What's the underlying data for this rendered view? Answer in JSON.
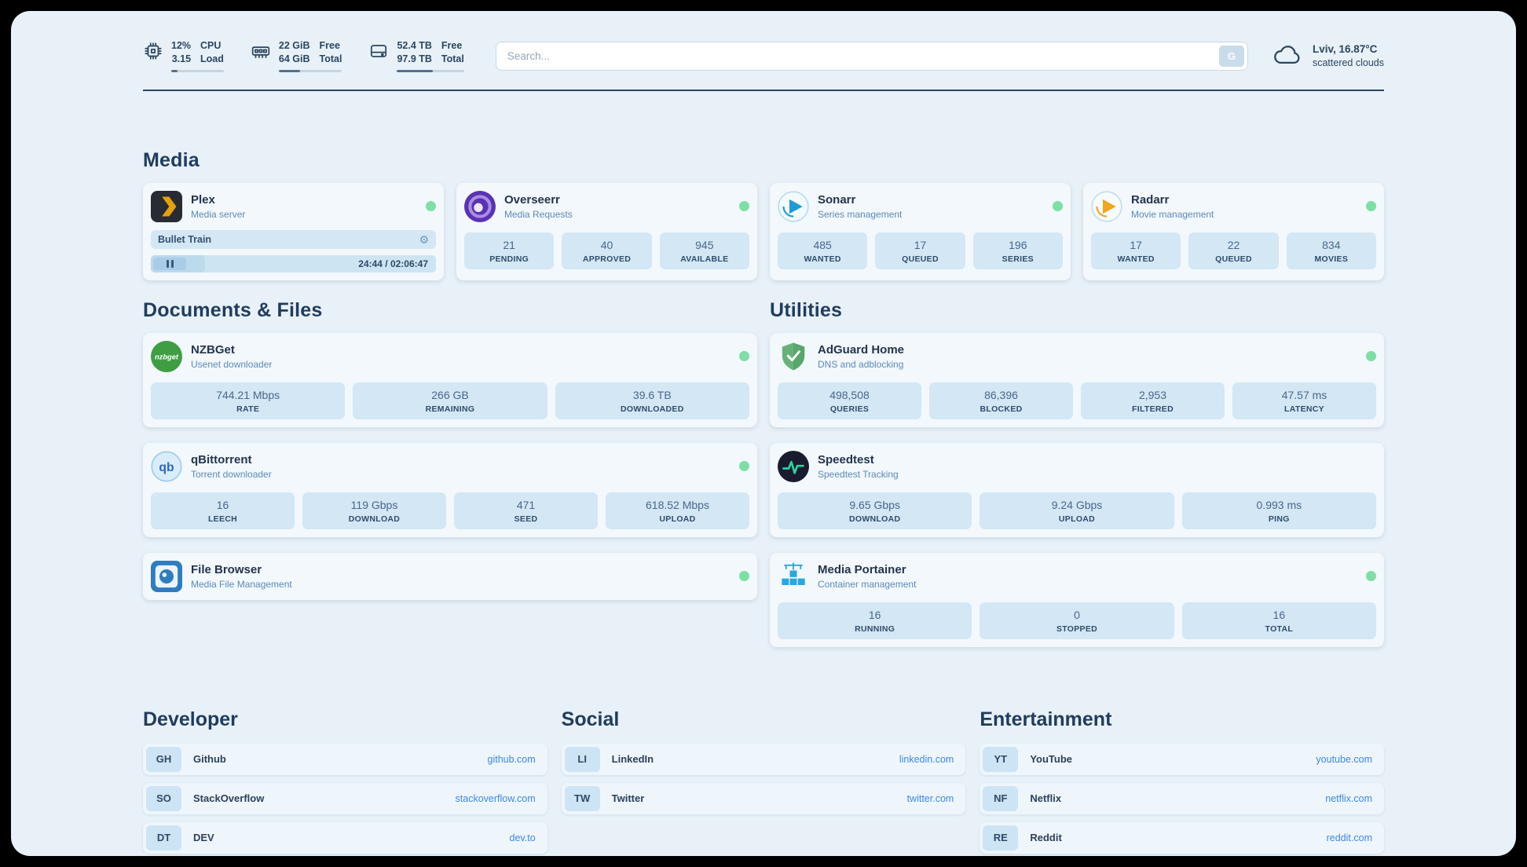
{
  "colors": {
    "status_online": "#7ddfa5",
    "link": "#3f86e8",
    "tile": "#d3e7f5",
    "background": "#e8f1f8"
  },
  "glyphs": {
    "gear": "⚙"
  },
  "topbar": {
    "cpu": {
      "value": "12%",
      "load": "3.15",
      "label_top": "CPU",
      "label_bottom": "Load",
      "meter_percent": 12
    },
    "memory": {
      "free": "22 GiB",
      "total": "64 GiB",
      "label_top": "Free",
      "label_bottom": "Total",
      "meter_percent": 34
    },
    "disk": {
      "free": "52.4 TB",
      "total": "97.9 TB",
      "label_top": "Free",
      "label_bottom": "Total",
      "meter_percent": 53
    },
    "search": {
      "placeholder": "Search...",
      "button_label": "G"
    },
    "weather": {
      "location": "Lviv, 16.87°C",
      "condition": "scattered clouds"
    }
  },
  "media": {
    "title": "Media",
    "plex": {
      "title": "Plex",
      "subtitle": "Media server",
      "now_playing": "Bullet Train",
      "time": "24:44 / 02:06:47",
      "progress_percent": 19
    },
    "overseerr": {
      "title": "Overseerr",
      "subtitle": "Media Requests",
      "stats": [
        {
          "value": "21",
          "label": "PENDING"
        },
        {
          "value": "40",
          "label": "APPROVED"
        },
        {
          "value": "945",
          "label": "AVAILABLE"
        }
      ]
    },
    "sonarr": {
      "title": "Sonarr",
      "subtitle": "Series management",
      "stats": [
        {
          "value": "485",
          "label": "WANTED"
        },
        {
          "value": "17",
          "label": "QUEUED"
        },
        {
          "value": "196",
          "label": "SERIES"
        }
      ]
    },
    "radarr": {
      "title": "Radarr",
      "subtitle": "Movie management",
      "stats": [
        {
          "value": "17",
          "label": "WANTED"
        },
        {
          "value": "22",
          "label": "QUEUED"
        },
        {
          "value": "834",
          "label": "MOVIES"
        }
      ]
    }
  },
  "documents": {
    "title": "Documents & Files",
    "nzbget": {
      "title": "NZBGet",
      "subtitle": "Usenet downloader",
      "stats": [
        {
          "value": "744.21 Mbps",
          "label": "RATE"
        },
        {
          "value": "266 GB",
          "label": "REMAINING"
        },
        {
          "value": "39.6 TB",
          "label": "DOWNLOADED"
        }
      ]
    },
    "qbittorrent": {
      "title": "qBittorrent",
      "subtitle": "Torrent downloader",
      "stats": [
        {
          "value": "16",
          "label": "LEECH"
        },
        {
          "value": "119 Gbps",
          "label": "DOWNLOAD"
        },
        {
          "value": "471",
          "label": "SEED"
        },
        {
          "value": "618.52 Mbps",
          "label": "UPLOAD"
        }
      ]
    },
    "filebrowser": {
      "title": "File Browser",
      "subtitle": "Media File Management"
    }
  },
  "utilities": {
    "title": "Utilities",
    "adguard": {
      "title": "AdGuard Home",
      "subtitle": "DNS and adblocking",
      "stats": [
        {
          "value": "498,508",
          "label": "QUERIES"
        },
        {
          "value": "86,396",
          "label": "BLOCKED"
        },
        {
          "value": "2,953",
          "label": "FILTERED"
        },
        {
          "value": "47.57 ms",
          "label": "LATENCY"
        }
      ]
    },
    "speedtest": {
      "title": "Speedtest",
      "subtitle": "Speedtest Tracking",
      "stats": [
        {
          "value": "9.65 Gbps",
          "label": "DOWNLOAD"
        },
        {
          "value": "9.24 Gbps",
          "label": "UPLOAD"
        },
        {
          "value": "0.993 ms",
          "label": "PING"
        }
      ]
    },
    "portainer": {
      "title": "Media Portainer",
      "subtitle": "Container management",
      "stats": [
        {
          "value": "16",
          "label": "RUNNING"
        },
        {
          "value": "0",
          "label": "STOPPED"
        },
        {
          "value": "16",
          "label": "TOTAL"
        }
      ]
    }
  },
  "bookmarks": {
    "developer": {
      "title": "Developer",
      "items": [
        {
          "abbr": "GH",
          "name": "Github",
          "domain": "github.com"
        },
        {
          "abbr": "SO",
          "name": "StackOverflow",
          "domain": "stackoverflow.com"
        },
        {
          "abbr": "DT",
          "name": "DEV",
          "domain": "dev.to"
        }
      ]
    },
    "social": {
      "title": "Social",
      "items": [
        {
          "abbr": "LI",
          "name": "LinkedIn",
          "domain": "linkedin.com"
        },
        {
          "abbr": "TW",
          "name": "Twitter",
          "domain": "twitter.com"
        }
      ]
    },
    "entertainment": {
      "title": "Entertainment",
      "items": [
        {
          "abbr": "YT",
          "name": "YouTube",
          "domain": "youtube.com"
        },
        {
          "abbr": "NF",
          "name": "Netflix",
          "domain": "netflix.com"
        },
        {
          "abbr": "RE",
          "name": "Reddit",
          "domain": "reddit.com"
        }
      ]
    }
  }
}
